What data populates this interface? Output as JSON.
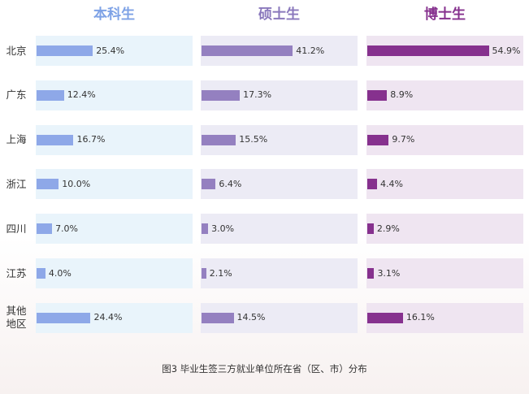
{
  "chart_data": {
    "type": "bar",
    "orientation": "horizontal",
    "title": "图3 毕业生签三方就业单位所在省（区、市）分布",
    "categories": [
      "北京",
      "广东",
      "上海",
      "浙江",
      "四川",
      "江苏",
      "其他地区"
    ],
    "category_lines": [
      [
        "北京"
      ],
      [
        "广东"
      ],
      [
        "上海"
      ],
      [
        "浙江"
      ],
      [
        "四川"
      ],
      [
        "江苏"
      ],
      [
        "其他",
        "地区"
      ]
    ],
    "xlim": [
      0,
      58
    ],
    "series": [
      {
        "name": "本科生",
        "values": [
          25.4,
          12.4,
          16.7,
          10.0,
          7.0,
          4.0,
          24.4
        ],
        "labels": [
          "25.4%",
          "12.4%",
          "16.7%",
          "10.0%",
          "7.0%",
          "4.0%",
          "24.4%"
        ]
      },
      {
        "name": "硕士生",
        "values": [
          41.2,
          17.3,
          15.5,
          6.4,
          3.0,
          2.1,
          14.5
        ],
        "labels": [
          "41.2%",
          "17.3%",
          "15.5%",
          "6.4%",
          "3.0%",
          "2.1%",
          "14.5%"
        ]
      },
      {
        "name": "博士生",
        "values": [
          54.9,
          8.9,
          9.7,
          4.4,
          2.9,
          3.1,
          16.1
        ],
        "labels": [
          "54.9%",
          "8.9%",
          "9.7%",
          "4.4%",
          "2.9%",
          "3.1%",
          "16.1%"
        ]
      }
    ]
  },
  "colors": {
    "series": [
      "#8ea8e8",
      "#9480c0",
      "#86318e"
    ],
    "headers": [
      "#7ea2e6",
      "#8a78bc",
      "#86318e"
    ],
    "panels": [
      "#e9f4fb",
      "#ecebf5",
      "#efe5f1"
    ]
  }
}
